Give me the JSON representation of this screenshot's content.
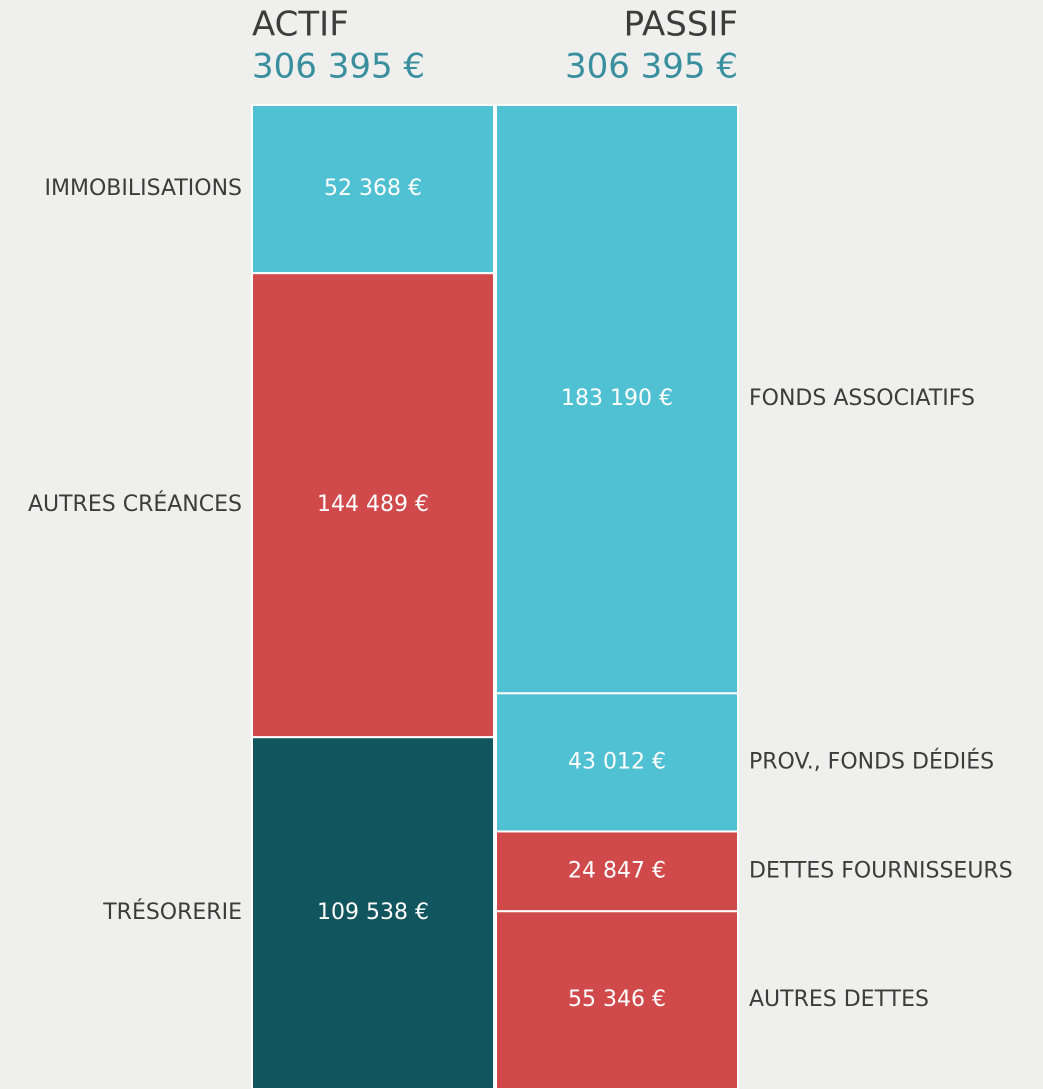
{
  "chart_data": {
    "type": "balance",
    "columns": [
      {
        "name": "ACTIF",
        "total": {
          "value": 306395,
          "label": "306 395 €"
        },
        "categories": [
          "IMMOBILISATIONS",
          "AUTRES CRÉANCES",
          "TRÉSORERIE"
        ],
        "values": [
          52368,
          144489,
          109538
        ],
        "value_labels": [
          "52 368 €",
          "144 489 €",
          "109 538 €"
        ],
        "colors": [
          "#50c0d3",
          "#d0494b",
          "#11555e"
        ]
      },
      {
        "name": "PASSIF",
        "total": {
          "value": 306395,
          "label": "306 395 €"
        },
        "categories": [
          "FONDS ASSOCIATIFS",
          "PROV., FONDS DÉDIÉS",
          "DETTES FOURNISSEURS",
          "AUTRES DETTES"
        ],
        "values": [
          183190,
          43012,
          24847,
          55346
        ],
        "value_labels": [
          "183 190 €",
          "43 012 €",
          "24 847 €",
          "55 346 €"
        ],
        "colors": [
          "#50c0d3",
          "#50c0d3",
          "#d0494b",
          "#d0494b"
        ]
      }
    ]
  }
}
